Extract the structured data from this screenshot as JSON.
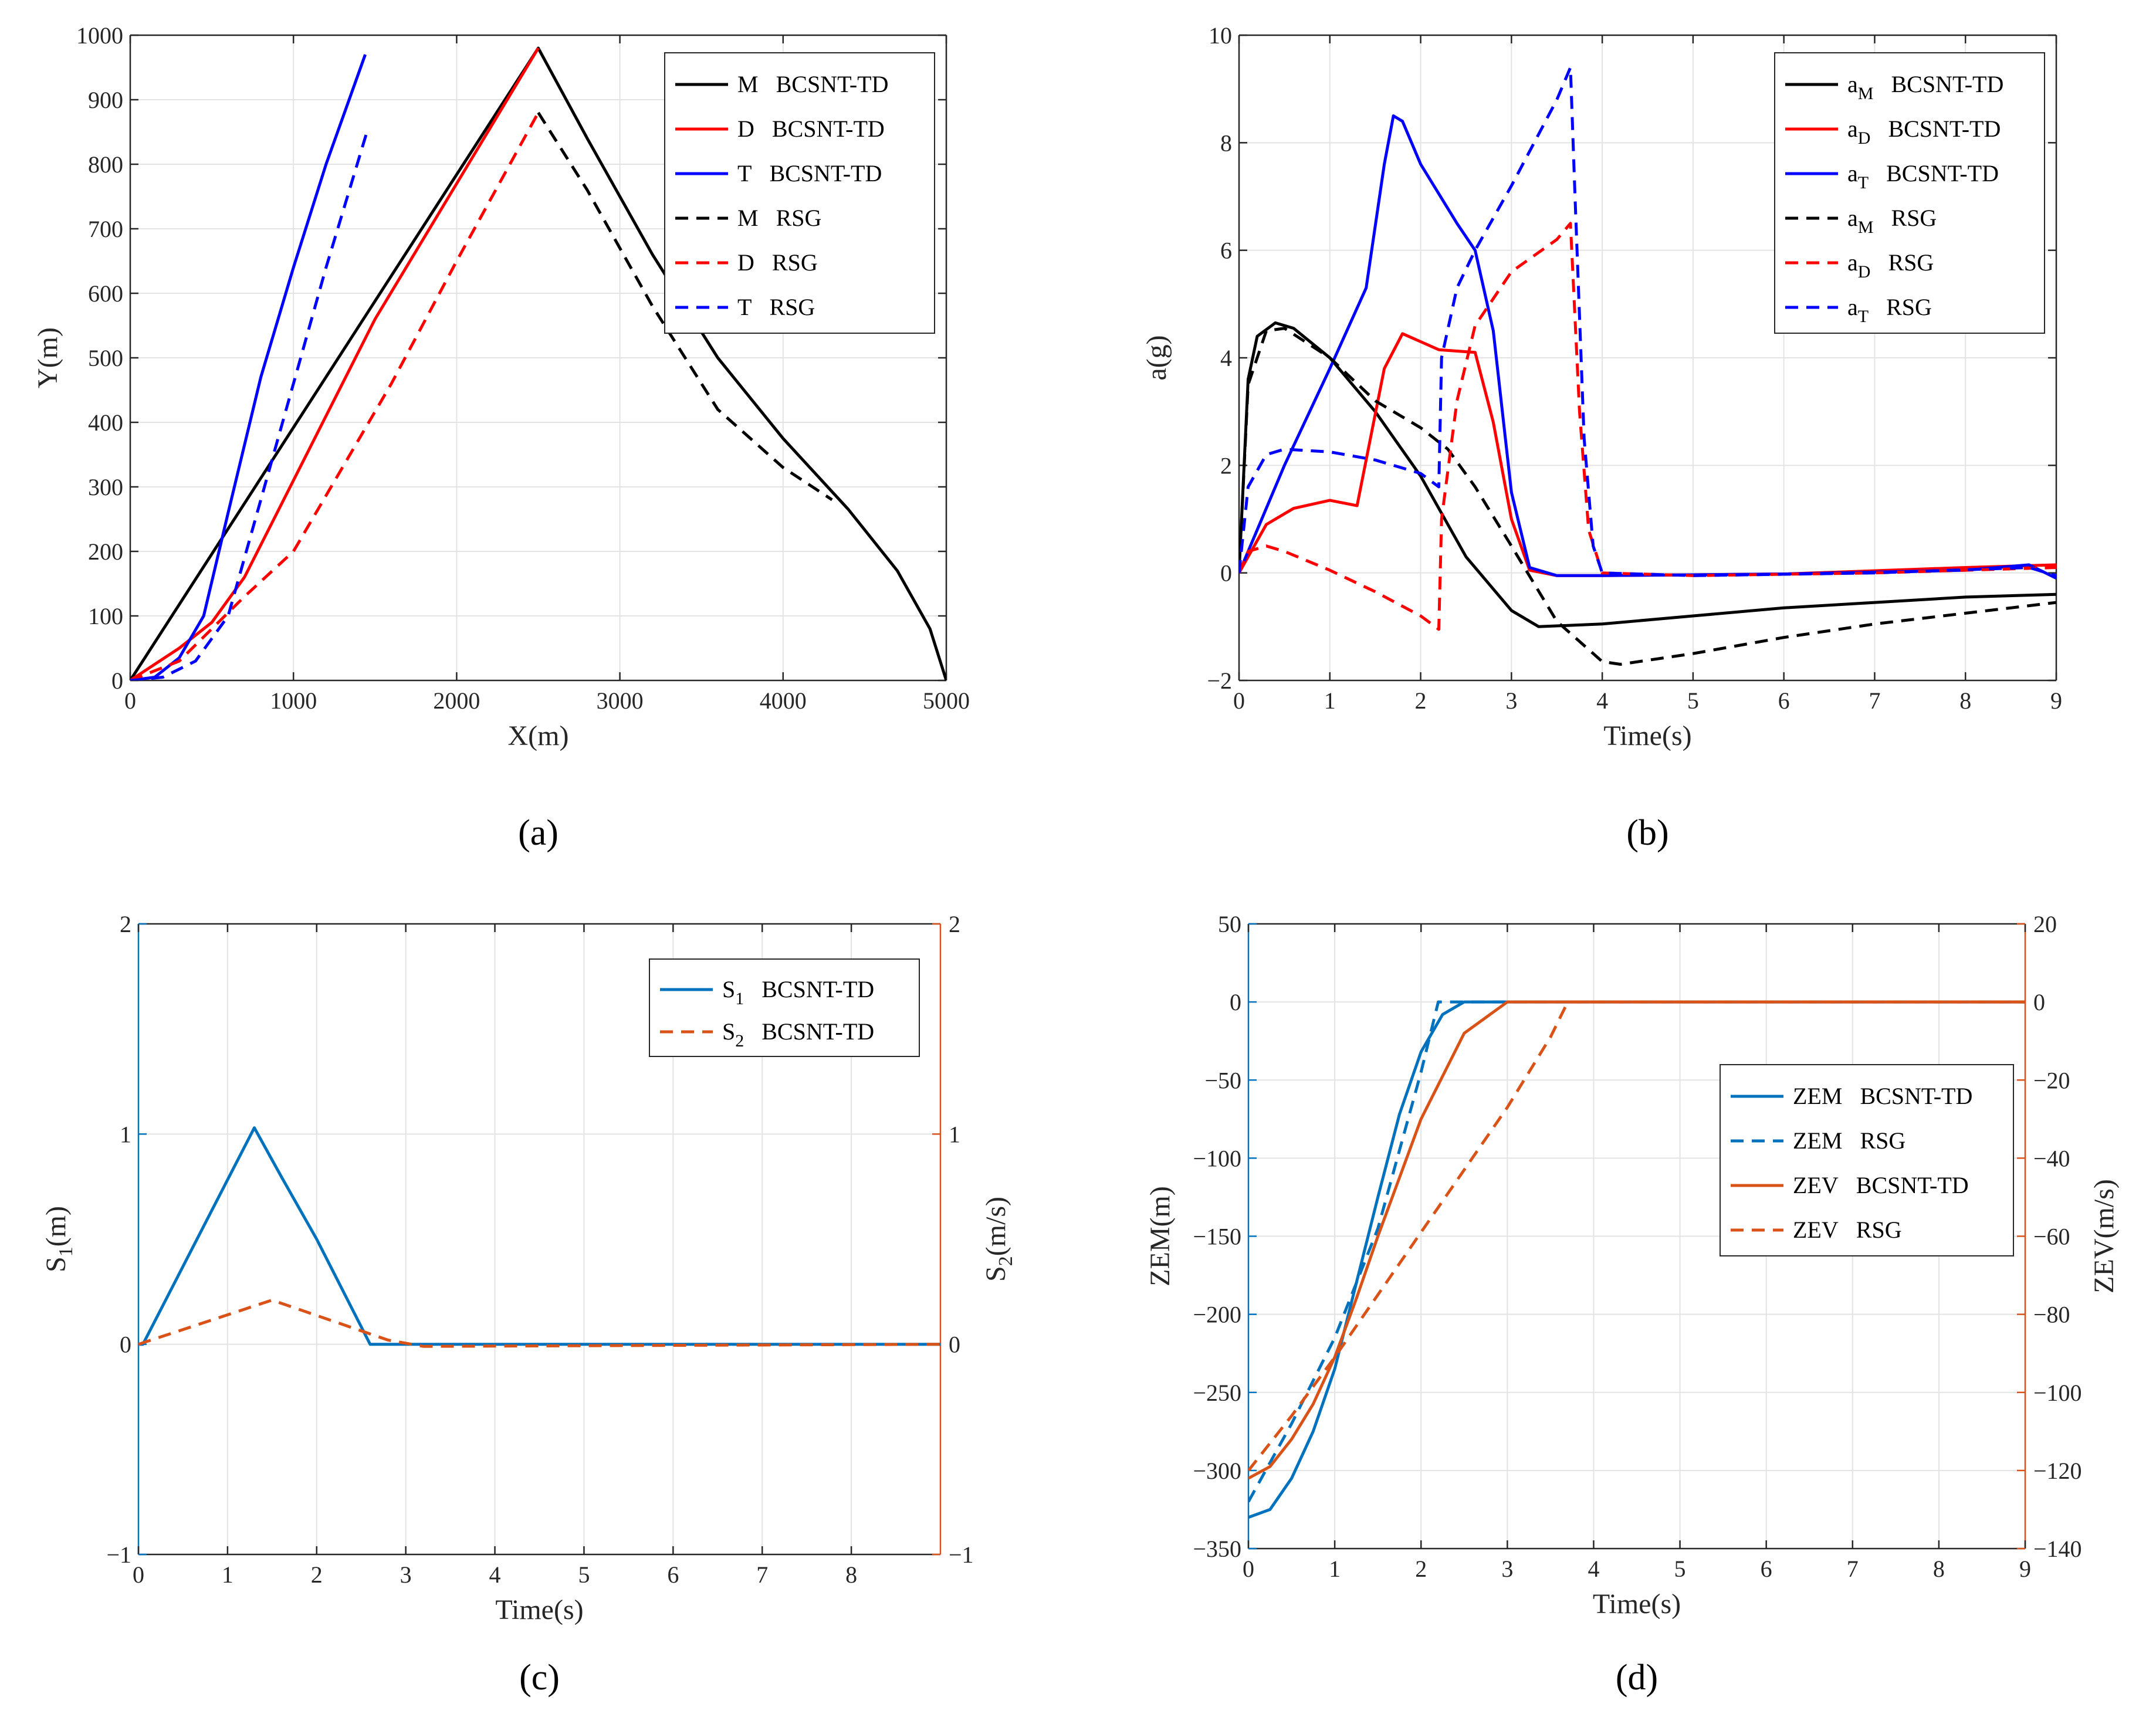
{
  "colors": {
    "black": "#000000",
    "red": "#ff0000",
    "blue": "#0000ff",
    "steel": "#0072bd",
    "orange": "#d95319",
    "grid": "#e3e3e3",
    "axis": "#262626"
  },
  "chart_data": [
    {
      "id": "a",
      "caption": "(a)",
      "type": "line",
      "xlabel": "X(m)",
      "ylabel": "Y(m)",
      "xlim": [
        0,
        5000
      ],
      "ylim": [
        0,
        1000
      ],
      "xticks": [
        0,
        1000,
        2000,
        3000,
        4000,
        5000
      ],
      "yticks": [
        0,
        100,
        200,
        300,
        400,
        500,
        600,
        700,
        800,
        900,
        1000
      ],
      "legend_position": "top-right",
      "series": [
        {
          "name": "M",
          "method": "BCSNT-TD",
          "color": "black",
          "style": "solid",
          "x": [
            0,
            2500,
            2800,
            3200,
            3600,
            4000,
            4400,
            4700,
            4900,
            5000
          ],
          "y": [
            0,
            980,
            840,
            660,
            500,
            375,
            265,
            170,
            80,
            0
          ]
        },
        {
          "name": "D",
          "method": "BCSNT-TD",
          "color": "red",
          "style": "solid",
          "x": [
            0,
            300,
            500,
            700,
            900,
            1200,
            1500,
            2000,
            2500
          ],
          "y": [
            0,
            50,
            90,
            160,
            260,
            410,
            560,
            770,
            980
          ]
        },
        {
          "name": "T",
          "method": "BCSNT-TD",
          "color": "blue",
          "style": "solid",
          "x": [
            0,
            150,
            300,
            450,
            600,
            800,
            1000,
            1200,
            1440
          ],
          "y": [
            0,
            5,
            35,
            100,
            260,
            470,
            640,
            800,
            970
          ]
        },
        {
          "name": "M",
          "method": "RSG",
          "color": "black",
          "style": "dashed",
          "x": [
            2500,
            2800,
            3200,
            3600,
            4000,
            4300
          ],
          "y": [
            880,
            760,
            580,
            420,
            330,
            280
          ]
        },
        {
          "name": "D",
          "method": "RSG",
          "color": "red",
          "style": "dashed",
          "x": [
            0,
            300,
            500,
            700,
            1000,
            1300,
            1600,
            2000,
            2500
          ],
          "y": [
            0,
            30,
            80,
            130,
            200,
            330,
            460,
            650,
            880
          ]
        },
        {
          "name": "T",
          "method": "RSG",
          "color": "blue",
          "style": "dashed",
          "x": [
            0,
            200,
            400,
            600,
            800,
            1000,
            1200,
            1450
          ],
          "y": [
            0,
            5,
            30,
            100,
            280,
            460,
            640,
            850
          ]
        }
      ]
    },
    {
      "id": "b",
      "caption": "(b)",
      "type": "line",
      "xlabel": "Time(s)",
      "ylabel": "a(g)",
      "xlim": [
        0,
        9
      ],
      "ylim": [
        -2,
        10
      ],
      "xticks": [
        0,
        1,
        2,
        3,
        4,
        5,
        6,
        7,
        8,
        9
      ],
      "yticks": [
        -2,
        0,
        2,
        4,
        6,
        8,
        10
      ],
      "legend_position": "top-right",
      "series": [
        {
          "name": "a",
          "sub": "M",
          "method": "BCSNT-TD",
          "color": "black",
          "style": "solid",
          "t": [
            0,
            0.1,
            0.2,
            0.4,
            0.6,
            1.0,
            1.5,
            2.0,
            2.5,
            3.0,
            3.3,
            4.0,
            5.0,
            6.0,
            7.0,
            8.0,
            9.0
          ],
          "v": [
            0,
            3.6,
            4.4,
            4.65,
            4.55,
            4.0,
            3.0,
            1.8,
            0.3,
            -0.7,
            -1.0,
            -0.95,
            -0.8,
            -0.65,
            -0.55,
            -0.45,
            -0.4
          ]
        },
        {
          "name": "a",
          "sub": "D",
          "method": "BCSNT-TD",
          "color": "red",
          "style": "solid",
          "t": [
            0,
            0.3,
            0.6,
            1.0,
            1.3,
            1.6,
            1.8,
            2.0,
            2.2,
            2.6,
            2.8,
            3.0,
            3.2,
            3.5,
            4.0,
            6.0,
            8.0,
            9.0
          ],
          "v": [
            0,
            0.9,
            1.2,
            1.35,
            1.25,
            3.8,
            4.45,
            4.3,
            4.15,
            4.1,
            2.8,
            1.0,
            0.05,
            -0.05,
            -0.05,
            -0.02,
            0.1,
            0.15
          ]
        },
        {
          "name": "a",
          "sub": "T",
          "method": "BCSNT-TD",
          "color": "blue",
          "style": "solid",
          "t": [
            0,
            0.5,
            1.0,
            1.4,
            1.6,
            1.7,
            1.8,
            2.0,
            2.4,
            2.6,
            2.8,
            3.0,
            3.2,
            3.5,
            4.0,
            6.0,
            8.0,
            8.7,
            9.0
          ],
          "v": [
            0,
            2.0,
            3.8,
            5.3,
            7.6,
            8.5,
            8.4,
            7.6,
            6.5,
            6.0,
            4.5,
            1.5,
            0.1,
            -0.05,
            -0.05,
            -0.02,
            0.05,
            0.15,
            -0.1
          ]
        },
        {
          "name": "a",
          "sub": "M",
          "method": "RSG",
          "color": "black",
          "style": "dashed",
          "t": [
            0,
            0.1,
            0.3,
            0.5,
            1.0,
            1.5,
            2.0,
            2.3,
            2.6,
            3.0,
            3.5,
            4.0,
            4.2,
            5.0,
            6.0,
            7.0,
            8.0,
            9.0
          ],
          "v": [
            0,
            3.5,
            4.5,
            4.55,
            4.0,
            3.2,
            2.7,
            2.3,
            1.6,
            0.5,
            -0.9,
            -1.65,
            -1.7,
            -1.5,
            -1.2,
            -0.95,
            -0.75,
            -0.55
          ]
        },
        {
          "name": "a",
          "sub": "D",
          "method": "RSG",
          "color": "red",
          "style": "dashed",
          "t": [
            0,
            0.1,
            0.3,
            0.5,
            1.0,
            1.5,
            2.0,
            2.2,
            2.23,
            2.4,
            2.6,
            3.0,
            3.5,
            3.65,
            3.75,
            3.85,
            4.0,
            5.0,
            7.0,
            9.0
          ],
          "v": [
            0,
            0.4,
            0.5,
            0.4,
            0.05,
            -0.35,
            -0.8,
            -1.05,
            1.0,
            3.2,
            4.6,
            5.6,
            6.2,
            6.5,
            3.0,
            0.8,
            0.0,
            -0.05,
            0.0,
            0.1
          ]
        },
        {
          "name": "a",
          "sub": "T",
          "method": "RSG",
          "color": "blue",
          "style": "dashed",
          "t": [
            0,
            0.1,
            0.3,
            0.5,
            1.0,
            1.5,
            2.0,
            2.2,
            2.23,
            2.4,
            2.6,
            3.0,
            3.5,
            3.65,
            3.7,
            3.8,
            3.9,
            4.0,
            5.0,
            7.0,
            8.7,
            9.0
          ],
          "v": [
            0,
            1.6,
            2.2,
            2.3,
            2.25,
            2.1,
            1.85,
            1.6,
            4.0,
            5.3,
            6.0,
            7.2,
            8.8,
            9.4,
            7.0,
            2.5,
            0.5,
            0.0,
            -0.05,
            0.0,
            0.1,
            -0.05
          ]
        }
      ]
    },
    {
      "id": "c",
      "caption": "(c)",
      "type": "line",
      "xlabel": "Time(s)",
      "ylabel": "S1(m)",
      "ylabel_main": "S",
      "ylabel_sub": "1",
      "ylabel_tail": "(m)",
      "y2label_main": "S",
      "y2label_sub": "2",
      "y2label_tail": "(m/s)",
      "xlim": [
        0,
        9
      ],
      "ylim": [
        -1,
        2
      ],
      "y2lim": [
        -1,
        2
      ],
      "xticks": [
        0,
        1,
        2,
        3,
        4,
        5,
        6,
        7,
        8
      ],
      "yticks": [
        -1,
        0,
        1,
        2
      ],
      "y2ticks": [
        -1,
        0,
        1,
        2
      ],
      "legend_position": "top-right",
      "series": [
        {
          "name": "S",
          "sub": "1",
          "method": "BCSNT-TD",
          "axis": "left",
          "color": "steel",
          "style": "solid",
          "t": [
            0,
            0.05,
            1.3,
            1.6,
            2.0,
            2.6,
            9.0
          ],
          "v": [
            0,
            0.0,
            1.03,
            0.8,
            0.5,
            0.0,
            0.0
          ]
        },
        {
          "name": "S",
          "sub": "2",
          "method": "BCSNT-TD",
          "axis": "right",
          "color": "orange",
          "style": "dashed",
          "t": [
            0,
            1.5,
            2.8,
            3.2,
            9.0
          ],
          "v": [
            0,
            0.21,
            0.02,
            -0.01,
            0.0
          ]
        }
      ]
    },
    {
      "id": "d",
      "caption": "(d)",
      "type": "line",
      "xlabel": "Time(s)",
      "ylabel": "ZEM(m)",
      "y2label": "ZEV(m/s)",
      "xlim": [
        0,
        9
      ],
      "ylim": [
        -350,
        50
      ],
      "y2lim": [
        -140,
        20
      ],
      "xticks": [
        0,
        1,
        2,
        3,
        4,
        5,
        6,
        7,
        8,
        9
      ],
      "yticks": [
        -350,
        -300,
        -250,
        -200,
        -150,
        -100,
        -50,
        0,
        50
      ],
      "y2ticks": [
        -140,
        -120,
        -100,
        -80,
        -60,
        -40,
        -20,
        0,
        20
      ],
      "legend_position": "center-right",
      "series": [
        {
          "name": "ZEM",
          "method": "BCSNT-TD",
          "axis": "left",
          "color": "steel",
          "style": "solid",
          "t": [
            0,
            0.25,
            0.5,
            0.75,
            1.0,
            1.25,
            1.5,
            1.75,
            2.0,
            2.25,
            2.5,
            2.6,
            9.0
          ],
          "v": [
            -330,
            -325,
            -305,
            -275,
            -235,
            -180,
            -125,
            -72,
            -32,
            -8,
            0,
            0,
            0
          ]
        },
        {
          "name": "ZEM",
          "method": "RSG",
          "axis": "left",
          "color": "steel",
          "style": "dashed",
          "t": [
            0,
            0.5,
            1.0,
            1.5,
            2.0,
            2.2,
            2.3,
            9.0
          ],
          "v": [
            -320,
            -270,
            -215,
            -145,
            -45,
            0,
            0,
            0
          ]
        },
        {
          "name": "ZEV",
          "method": "BCSNT-TD",
          "axis": "right",
          "color": "orange",
          "style": "solid",
          "t": [
            0,
            0.25,
            0.5,
            0.75,
            1.0,
            1.25,
            1.5,
            2.0,
            2.5,
            3.0,
            9.0
          ],
          "v": [
            -122,
            -119,
            -112,
            -103,
            -91,
            -76,
            -60,
            -30,
            -8,
            0,
            0
          ]
        },
        {
          "name": "ZEV",
          "method": "RSG",
          "axis": "right",
          "color": "orange",
          "style": "dashed",
          "t": [
            0,
            0.5,
            1.0,
            1.5,
            2.0,
            2.5,
            3.0,
            3.5,
            3.7,
            9.0
          ],
          "v": [
            -120,
            -106,
            -91,
            -75,
            -59,
            -43,
            -27,
            -9,
            0,
            0
          ]
        }
      ]
    }
  ]
}
